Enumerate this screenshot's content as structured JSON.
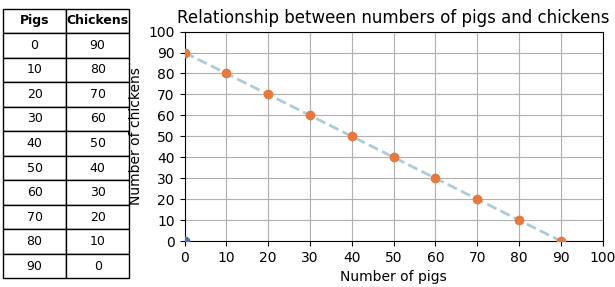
{
  "chart_data": {
    "type": "scatter",
    "title": "Relationship between numbers of pigs and chickens",
    "xlabel": "Number of pigs",
    "ylabel": "Number of chickens",
    "xlim": [
      0,
      100
    ],
    "ylim": [
      0,
      100
    ],
    "xticks": [
      0,
      10,
      20,
      30,
      40,
      50,
      60,
      70,
      80,
      90,
      100
    ],
    "yticks": [
      0,
      10,
      20,
      30,
      40,
      50,
      60,
      70,
      80,
      90,
      100
    ],
    "grid": true,
    "table_columns": [
      "Pigs",
      "Chickens"
    ],
    "series": [
      {
        "type": "line",
        "line_style": "dashed",
        "color": "#AECBDB",
        "x": [
          0,
          10,
          20,
          30,
          40,
          50,
          60,
          70,
          80,
          90
        ],
        "values": [
          90,
          80,
          70,
          60,
          50,
          40,
          30,
          20,
          10,
          0
        ]
      },
      {
        "type": "scatter",
        "color": "#E8783C",
        "x": [
          0,
          10,
          20,
          30,
          40,
          50,
          60,
          70,
          80,
          90
        ],
        "values": [
          90,
          80,
          70,
          60,
          50,
          40,
          30,
          20,
          10,
          0
        ]
      },
      {
        "type": "scatter",
        "color": "#4472C4",
        "x": [
          0
        ],
        "values": [
          0
        ]
      }
    ]
  }
}
